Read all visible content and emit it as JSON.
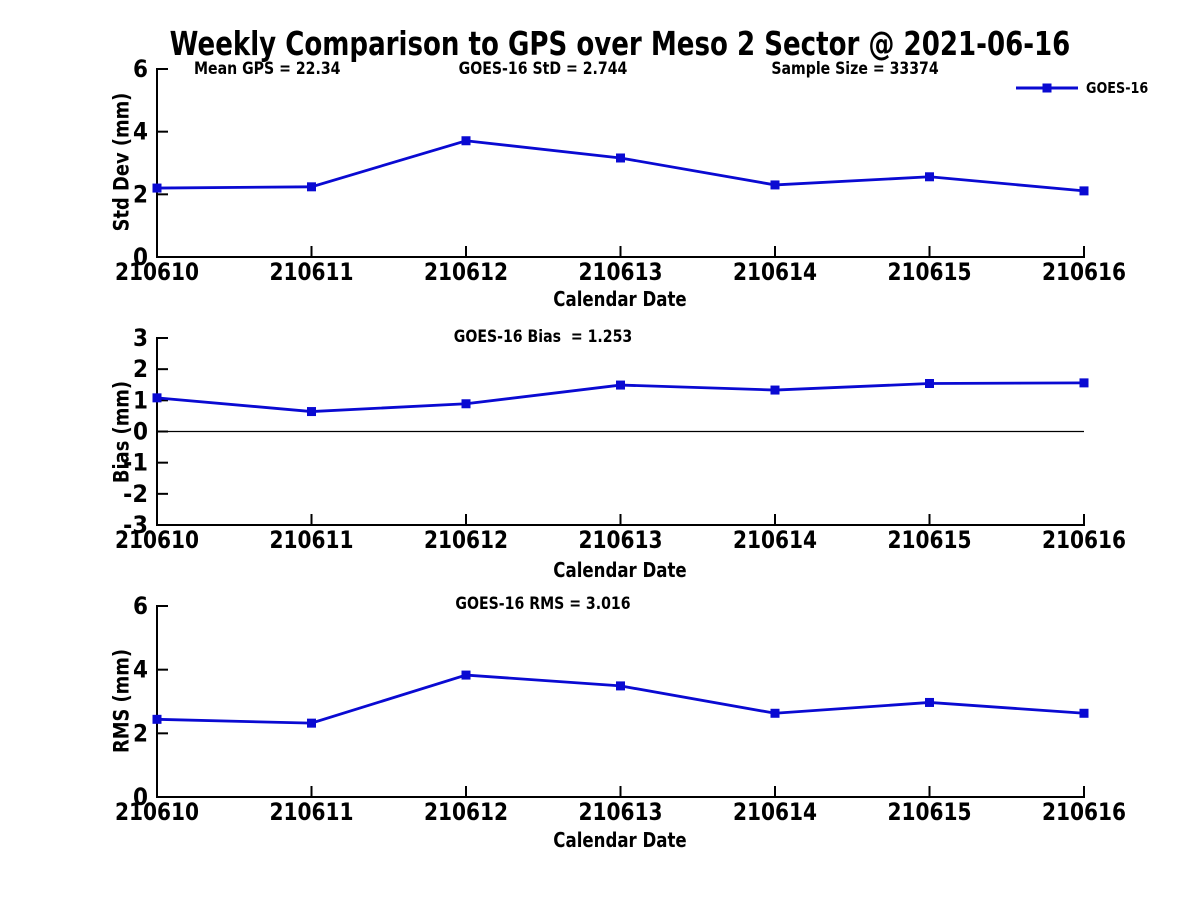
{
  "title": "Weekly Comparison to GPS over Meso 2 Sector @ 2021-06-16",
  "legend": {
    "label": "GOES-16",
    "position": "top-right"
  },
  "colors": {
    "series": "#0a0ad2",
    "axis": "#000000",
    "zero_line": "#000000",
    "background": "#ffffff",
    "text": "#000000"
  },
  "chart_data": [
    {
      "type": "line",
      "annotations": [
        "Mean GPS = 22.34",
        "GOES-16 StD = 2.744",
        "Sample Size = 33374"
      ],
      "categories": [
        "210610",
        "210611",
        "210612",
        "210613",
        "210614",
        "210615",
        "210616"
      ],
      "series": [
        {
          "name": "GOES-16",
          "values": [
            2.2,
            2.24,
            3.71,
            3.16,
            2.3,
            2.56,
            2.11
          ]
        }
      ],
      "xlabel": "Calendar Date",
      "ylabel": "Std Dev (mm)",
      "ylim": [
        0,
        6
      ],
      "yticks": [
        6,
        4,
        2,
        0
      ],
      "zero_line": false,
      "grid": false,
      "marker": "square",
      "legend_position": "top-right"
    },
    {
      "type": "line",
      "title": "GOES-16 Bias  = 1.253",
      "categories": [
        "210610",
        "210611",
        "210612",
        "210613",
        "210614",
        "210615",
        "210616"
      ],
      "series": [
        {
          "name": "GOES-16",
          "values": [
            1.08,
            0.64,
            0.89,
            1.49,
            1.33,
            1.54,
            1.56
          ]
        }
      ],
      "xlabel": "Calendar Date",
      "ylabel": "Bias (mm)",
      "ylim": [
        -3,
        3
      ],
      "yticks": [
        3,
        2,
        1,
        0,
        -1,
        -2,
        -3
      ],
      "zero_line": true,
      "grid": false,
      "marker": "square"
    },
    {
      "type": "line",
      "title": "GOES-16 RMS = 3.016",
      "categories": [
        "210610",
        "210611",
        "210612",
        "210613",
        "210614",
        "210615",
        "210616"
      ],
      "series": [
        {
          "name": "GOES-16",
          "values": [
            2.44,
            2.32,
            3.83,
            3.49,
            2.63,
            2.97,
            2.63
          ]
        }
      ],
      "xlabel": "Calendar Date",
      "ylabel": "RMS (mm)",
      "ylim": [
        0,
        6
      ],
      "yticks": [
        6,
        4,
        2,
        0
      ],
      "zero_line": false,
      "grid": false,
      "marker": "square"
    }
  ]
}
